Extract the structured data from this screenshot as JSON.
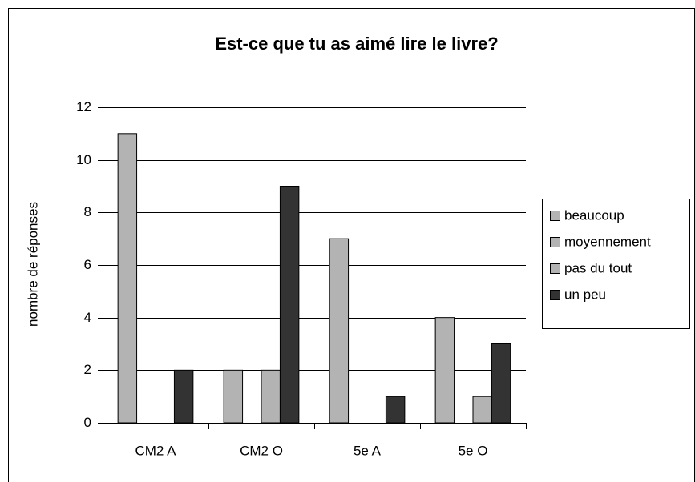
{
  "chart_data": {
    "type": "bar",
    "title": "Est-ce que tu as aimé lire le livre?",
    "y_label": "nombre de réponses",
    "categories": [
      "CM2 A",
      "CM2 O",
      "5e A",
      "5e O"
    ],
    "series": [
      {
        "name": "beaucoup",
        "color": "#b3b3b3",
        "values": [
          11,
          2,
          7,
          4
        ]
      },
      {
        "name": "moyennement",
        "color": "#b3b3b3",
        "values": [
          0,
          0,
          0,
          0
        ]
      },
      {
        "name": "pas du tout",
        "color": "#b3b3b3",
        "values": [
          0,
          2,
          0,
          1
        ]
      },
      {
        "name": "un peu",
        "color": "#333333",
        "values": [
          2,
          9,
          1,
          3
        ]
      }
    ],
    "ylim": [
      0,
      12
    ],
    "yticks": [
      0,
      2,
      4,
      6,
      8,
      10,
      12
    ],
    "grid": true,
    "legend": "right"
  }
}
